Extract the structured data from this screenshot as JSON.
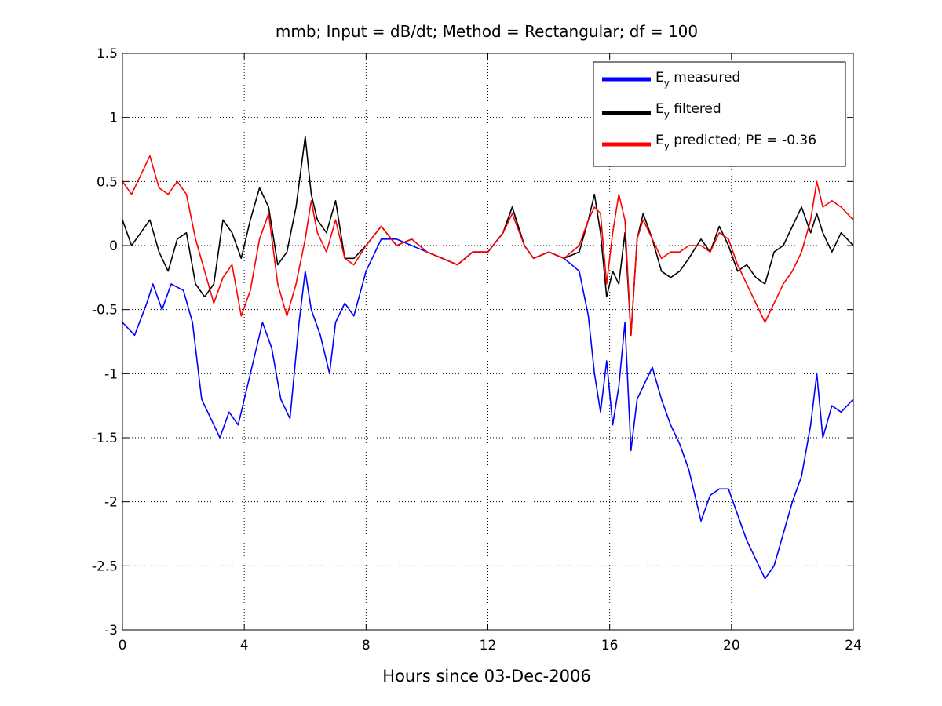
{
  "chart_data": {
    "type": "line",
    "title": "mmb; Input = dB/dt; Method = Rectangular; df = 100",
    "xlabel": "Hours since 03-Dec-2006",
    "ylabel": "",
    "xlim": [
      0,
      24
    ],
    "ylim": [
      -3,
      1.5
    ],
    "xticks": [
      0,
      4,
      8,
      12,
      16,
      20,
      24
    ],
    "yticks": [
      -3,
      -2.5,
      -2,
      -1.5,
      -1,
      -0.5,
      0,
      0.5,
      1,
      1.5
    ],
    "grid": true,
    "legend_position": "top-right",
    "series": [
      {
        "name": "measured",
        "legend_main": "E",
        "legend_sub": "y",
        "legend_rest": " measured",
        "color": "#0000ff",
        "x": [
          0,
          0.4,
          0.8,
          1.0,
          1.3,
          1.6,
          2.0,
          2.3,
          2.6,
          3.0,
          3.2,
          3.5,
          3.8,
          4.0,
          4.3,
          4.6,
          4.9,
          5.2,
          5.5,
          5.8,
          6.0,
          6.2,
          6.5,
          6.8,
          7.0,
          7.3,
          7.6,
          8.0,
          8.5,
          9.0,
          9.5,
          10.0,
          10.5,
          11.0,
          11.5,
          12.0,
          12.5,
          12.8,
          13.2,
          13.5,
          14.0,
          14.5,
          15.0,
          15.3,
          15.5,
          15.7,
          15.9,
          16.1,
          16.3,
          16.5,
          16.7,
          16.9,
          17.1,
          17.4,
          17.7,
          18.0,
          18.3,
          18.6,
          19.0,
          19.3,
          19.6,
          19.9,
          20.2,
          20.5,
          20.8,
          21.1,
          21.4,
          21.7,
          22.0,
          22.3,
          22.6,
          22.8,
          23.0,
          23.3,
          23.6,
          24.0
        ],
        "y": [
          -0.6,
          -0.7,
          -0.45,
          -0.3,
          -0.5,
          -0.3,
          -0.35,
          -0.6,
          -1.2,
          -1.4,
          -1.5,
          -1.3,
          -1.4,
          -1.2,
          -0.9,
          -0.6,
          -0.8,
          -1.2,
          -1.35,
          -0.6,
          -0.2,
          -0.5,
          -0.7,
          -1.0,
          -0.6,
          -0.45,
          -0.55,
          -0.2,
          0.05,
          0.05,
          0.0,
          -0.05,
          -0.1,
          -0.15,
          -0.05,
          -0.05,
          0.1,
          0.3,
          0.0,
          -0.1,
          -0.05,
          -0.1,
          -0.2,
          -0.55,
          -1.0,
          -1.3,
          -0.9,
          -1.4,
          -1.1,
          -0.6,
          -1.6,
          -1.2,
          -1.1,
          -0.95,
          -1.2,
          -1.4,
          -1.55,
          -1.75,
          -2.15,
          -1.95,
          -1.9,
          -1.9,
          -2.1,
          -2.3,
          -2.45,
          -2.6,
          -2.5,
          -2.25,
          -2.0,
          -1.8,
          -1.4,
          -1.0,
          -1.5,
          -1.25,
          -1.3,
          -1.2
        ]
      },
      {
        "name": "filtered",
        "legend_main": "E",
        "legend_sub": "y",
        "legend_rest": " filtered",
        "color": "#000000",
        "x": [
          0,
          0.3,
          0.6,
          0.9,
          1.2,
          1.5,
          1.8,
          2.1,
          2.4,
          2.7,
          3.0,
          3.3,
          3.6,
          3.9,
          4.2,
          4.5,
          4.8,
          5.1,
          5.4,
          5.7,
          6.0,
          6.2,
          6.4,
          6.7,
          7.0,
          7.3,
          7.6,
          8.0,
          8.5,
          9.0,
          9.5,
          10.0,
          10.5,
          11.0,
          11.5,
          12.0,
          12.5,
          12.8,
          13.2,
          13.5,
          14.0,
          14.5,
          15.0,
          15.3,
          15.5,
          15.7,
          15.9,
          16.1,
          16.3,
          16.5,
          16.7,
          16.9,
          17.1,
          17.4,
          17.7,
          18.0,
          18.3,
          18.6,
          19.0,
          19.3,
          19.6,
          19.9,
          20.2,
          20.5,
          20.8,
          21.1,
          21.4,
          21.7,
          22.0,
          22.3,
          22.6,
          22.8,
          23.0,
          23.3,
          23.6,
          24.0
        ],
        "y": [
          0.2,
          0.0,
          0.1,
          0.2,
          -0.05,
          -0.2,
          0.05,
          0.1,
          -0.3,
          -0.4,
          -0.3,
          0.2,
          0.1,
          -0.1,
          0.2,
          0.45,
          0.3,
          -0.15,
          -0.05,
          0.3,
          0.85,
          0.4,
          0.2,
          0.1,
          0.35,
          -0.1,
          -0.1,
          0.0,
          0.15,
          0.0,
          0.05,
          -0.05,
          -0.1,
          -0.15,
          -0.05,
          -0.05,
          0.1,
          0.3,
          0.0,
          -0.1,
          -0.05,
          -0.1,
          -0.05,
          0.2,
          0.4,
          0.1,
          -0.4,
          -0.2,
          -0.3,
          0.1,
          -0.7,
          0.05,
          0.25,
          0.05,
          -0.2,
          -0.25,
          -0.2,
          -0.1,
          0.05,
          -0.05,
          0.15,
          0.0,
          -0.2,
          -0.15,
          -0.25,
          -0.3,
          -0.05,
          0.0,
          0.15,
          0.3,
          0.1,
          0.25,
          0.1,
          -0.05,
          0.1,
          0.0
        ]
      },
      {
        "name": "predicted; PE = -0.36",
        "legend_main": "E",
        "legend_sub": "y",
        "legend_rest": " predicted; PE = -0.36",
        "color": "#ff0000",
        "x": [
          0,
          0.3,
          0.6,
          0.9,
          1.2,
          1.5,
          1.8,
          2.1,
          2.4,
          2.7,
          3.0,
          3.3,
          3.6,
          3.9,
          4.2,
          4.5,
          4.8,
          5.1,
          5.4,
          5.7,
          6.0,
          6.2,
          6.4,
          6.7,
          7.0,
          7.3,
          7.6,
          8.0,
          8.5,
          9.0,
          9.5,
          10.0,
          10.5,
          11.0,
          11.5,
          12.0,
          12.5,
          12.8,
          13.2,
          13.5,
          14.0,
          14.5,
          15.0,
          15.3,
          15.5,
          15.7,
          15.9,
          16.1,
          16.3,
          16.5,
          16.7,
          16.9,
          17.1,
          17.4,
          17.7,
          18.0,
          18.3,
          18.6,
          19.0,
          19.3,
          19.6,
          19.9,
          20.2,
          20.5,
          20.8,
          21.1,
          21.4,
          21.7,
          22.0,
          22.3,
          22.6,
          22.8,
          23.0,
          23.3,
          23.6,
          24.0
        ],
        "y": [
          0.5,
          0.4,
          0.55,
          0.7,
          0.45,
          0.4,
          0.5,
          0.4,
          0.05,
          -0.2,
          -0.45,
          -0.25,
          -0.15,
          -0.55,
          -0.35,
          0.05,
          0.25,
          -0.3,
          -0.55,
          -0.3,
          0.05,
          0.35,
          0.1,
          -0.05,
          0.2,
          -0.1,
          -0.15,
          0.0,
          0.15,
          0.0,
          0.05,
          -0.05,
          -0.1,
          -0.15,
          -0.05,
          -0.05,
          0.1,
          0.25,
          0.0,
          -0.1,
          -0.05,
          -0.1,
          0.0,
          0.2,
          0.3,
          0.25,
          -0.3,
          0.1,
          0.4,
          0.2,
          -0.7,
          0.05,
          0.2,
          0.05,
          -0.1,
          -0.05,
          -0.05,
          0.0,
          0.0,
          -0.05,
          0.1,
          0.05,
          -0.15,
          -0.3,
          -0.45,
          -0.6,
          -0.45,
          -0.3,
          -0.2,
          -0.05,
          0.2,
          0.5,
          0.3,
          0.35,
          0.3,
          0.2
        ]
      }
    ]
  }
}
